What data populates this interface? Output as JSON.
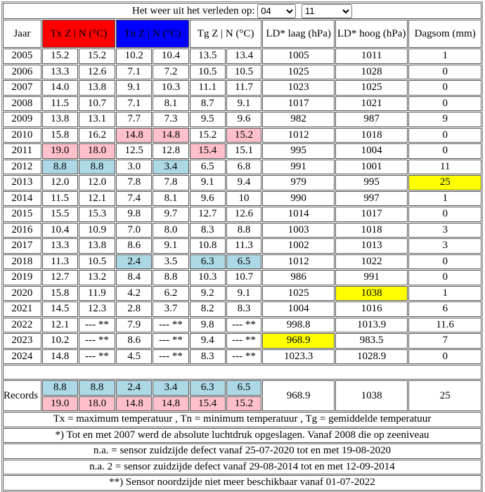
{
  "title": "Het weer uit het verleden op:",
  "selects": {
    "day": "04",
    "month": "11"
  },
  "headers": {
    "jaar": "Jaar",
    "tx": "Tx Z | N (°C)",
    "tn": "Tn Z | N (°C)",
    "tg": "Tg Z | N (°C)",
    "ld_laag": "LD* laag (hPa)",
    "ld_hoog": "LD* hoog (hPa)",
    "dagsom": "Dagsom (mm)"
  },
  "colors": {
    "tx_header": "#ff0000",
    "tn_header": "#0000ff",
    "record_high": "#ffc0cb",
    "record_low": "#add8e6",
    "record_extreme": "#ffff00"
  },
  "rows": [
    {
      "v": [
        "2005",
        "15.2",
        "15.2",
        "10.2",
        "10.4",
        "13.5",
        "13.4",
        "1005",
        "1011",
        "1"
      ],
      "hl": {}
    },
    {
      "v": [
        "2006",
        "13.3",
        "12.6",
        "7.1",
        "7.2",
        "10.5",
        "10.5",
        "1025",
        "1028",
        "0"
      ],
      "hl": {}
    },
    {
      "v": [
        "2007",
        "14.0",
        "13.8",
        "9.1",
        "10.3",
        "11.1",
        "11.7",
        "1023",
        "1025",
        "0"
      ],
      "hl": {}
    },
    {
      "v": [
        "2008",
        "11.5",
        "10.7",
        "7.1",
        "8.1",
        "8.7",
        "9.1",
        "1017",
        "1021",
        "0"
      ],
      "hl": {}
    },
    {
      "v": [
        "2009",
        "13.8",
        "13.1",
        "7.7",
        "7.3",
        "9.5",
        "9.6",
        "982",
        "987",
        "9"
      ],
      "hl": {}
    },
    {
      "v": [
        "2010",
        "15.8",
        "16.2",
        "14.8",
        "14.8",
        "15.2",
        "15.2",
        "1012",
        "1018",
        "0"
      ],
      "hl": {
        "3": "pink",
        "4": "pink",
        "6": "pink"
      }
    },
    {
      "v": [
        "2011",
        "19.0",
        "18.0",
        "12.5",
        "12.8",
        "15.4",
        "15.1",
        "995",
        "1004",
        "0"
      ],
      "hl": {
        "1": "pink",
        "2": "pink",
        "5": "pink"
      }
    },
    {
      "v": [
        "2012",
        "8.8",
        "8.8",
        "3.0",
        "3.4",
        "6.5",
        "6.8",
        "991",
        "1001",
        "11"
      ],
      "hl": {
        "1": "blue",
        "2": "blue",
        "4": "blue"
      }
    },
    {
      "v": [
        "2013",
        "12.0",
        "12.0",
        "7.8",
        "7.8",
        "9.1",
        "9.4",
        "979",
        "995",
        "25"
      ],
      "hl": {
        "9": "yellow"
      }
    },
    {
      "v": [
        "2014",
        "11.5",
        "12.1",
        "7.4",
        "8.1",
        "9.6",
        "10",
        "990",
        "997",
        "1"
      ],
      "hl": {}
    },
    {
      "v": [
        "2015",
        "15.5",
        "15.3",
        "9.8",
        "9.7",
        "12.7",
        "12.6",
        "1014",
        "1017",
        "0"
      ],
      "hl": {}
    },
    {
      "v": [
        "2016",
        "10.4",
        "10.9",
        "7.0",
        "8.0",
        "8.3",
        "8.8",
        "1003",
        "1018",
        "3"
      ],
      "hl": {}
    },
    {
      "v": [
        "2017",
        "13.3",
        "13.8",
        "8.6",
        "9.1",
        "10.8",
        "11.3",
        "1002",
        "1013",
        "3"
      ],
      "hl": {}
    },
    {
      "v": [
        "2018",
        "11.3",
        "10.5",
        "2.4",
        "3.5",
        "6.3",
        "6.5",
        "1012",
        "1022",
        "0"
      ],
      "hl": {
        "3": "blue",
        "5": "blue",
        "6": "blue"
      }
    },
    {
      "v": [
        "2019",
        "12.7",
        "13.2",
        "8.4",
        "8.8",
        "10.3",
        "10.7",
        "986",
        "991",
        "0"
      ],
      "hl": {}
    },
    {
      "v": [
        "2020",
        "15.8",
        "11.9",
        "4.2",
        "6.2",
        "9.2",
        "9.1",
        "1025",
        "1038",
        "1"
      ],
      "hl": {
        "8": "yellow"
      }
    },
    {
      "v": [
        "2021",
        "14.5",
        "12.3",
        "2.8",
        "3.7",
        "8.2",
        "8.3",
        "1004",
        "1016",
        "6"
      ],
      "hl": {}
    },
    {
      "v": [
        "2022",
        "12.1",
        "--- **",
        "7.9",
        "--- **",
        "9.8",
        "--- **",
        "998.8",
        "1013.9",
        "11.6"
      ],
      "hl": {}
    },
    {
      "v": [
        "2023",
        "10.2",
        "--- **",
        "8.6",
        "--- **",
        "9.4",
        "--- **",
        "968.9",
        "983.5",
        "7"
      ],
      "hl": {
        "7": "yellow"
      }
    },
    {
      "v": [
        "2024",
        "14.8",
        "--- **",
        "4.5",
        "--- **",
        "8.3",
        "--- **",
        "1023.3",
        "1028.9",
        "0"
      ],
      "hl": {}
    }
  ],
  "records": {
    "label": "Records",
    "low": [
      "8.8",
      "8.8",
      "2.4",
      "3.4",
      "6.3",
      "6.5"
    ],
    "high": [
      "19.0",
      "18.0",
      "14.8",
      "14.8",
      "15.4",
      "15.2"
    ],
    "ld_laag": "968.9",
    "ld_hoog": "1038",
    "dagsom": "25"
  },
  "footnotes": [
    "Tx = maximum temperatuur , Tn = minimum temperatuur , Tg = gemiddelde temperatuur",
    "*) Tot en met 2007 werd de absolute luchtdruk opgeslagen. Vanaf 2008 die op zeeniveau",
    "n.a. = sensor zuidzijde defect vanaf 25-07-2020 tot en met 19-08-2020",
    "n.a. 2 = sensor zuidzijde defect vanaf 29-08-2014 tot en met 12-09-2014",
    "**) Sensor noordzijde niet meer beschikbaar vanaf 01-07-2022"
  ]
}
